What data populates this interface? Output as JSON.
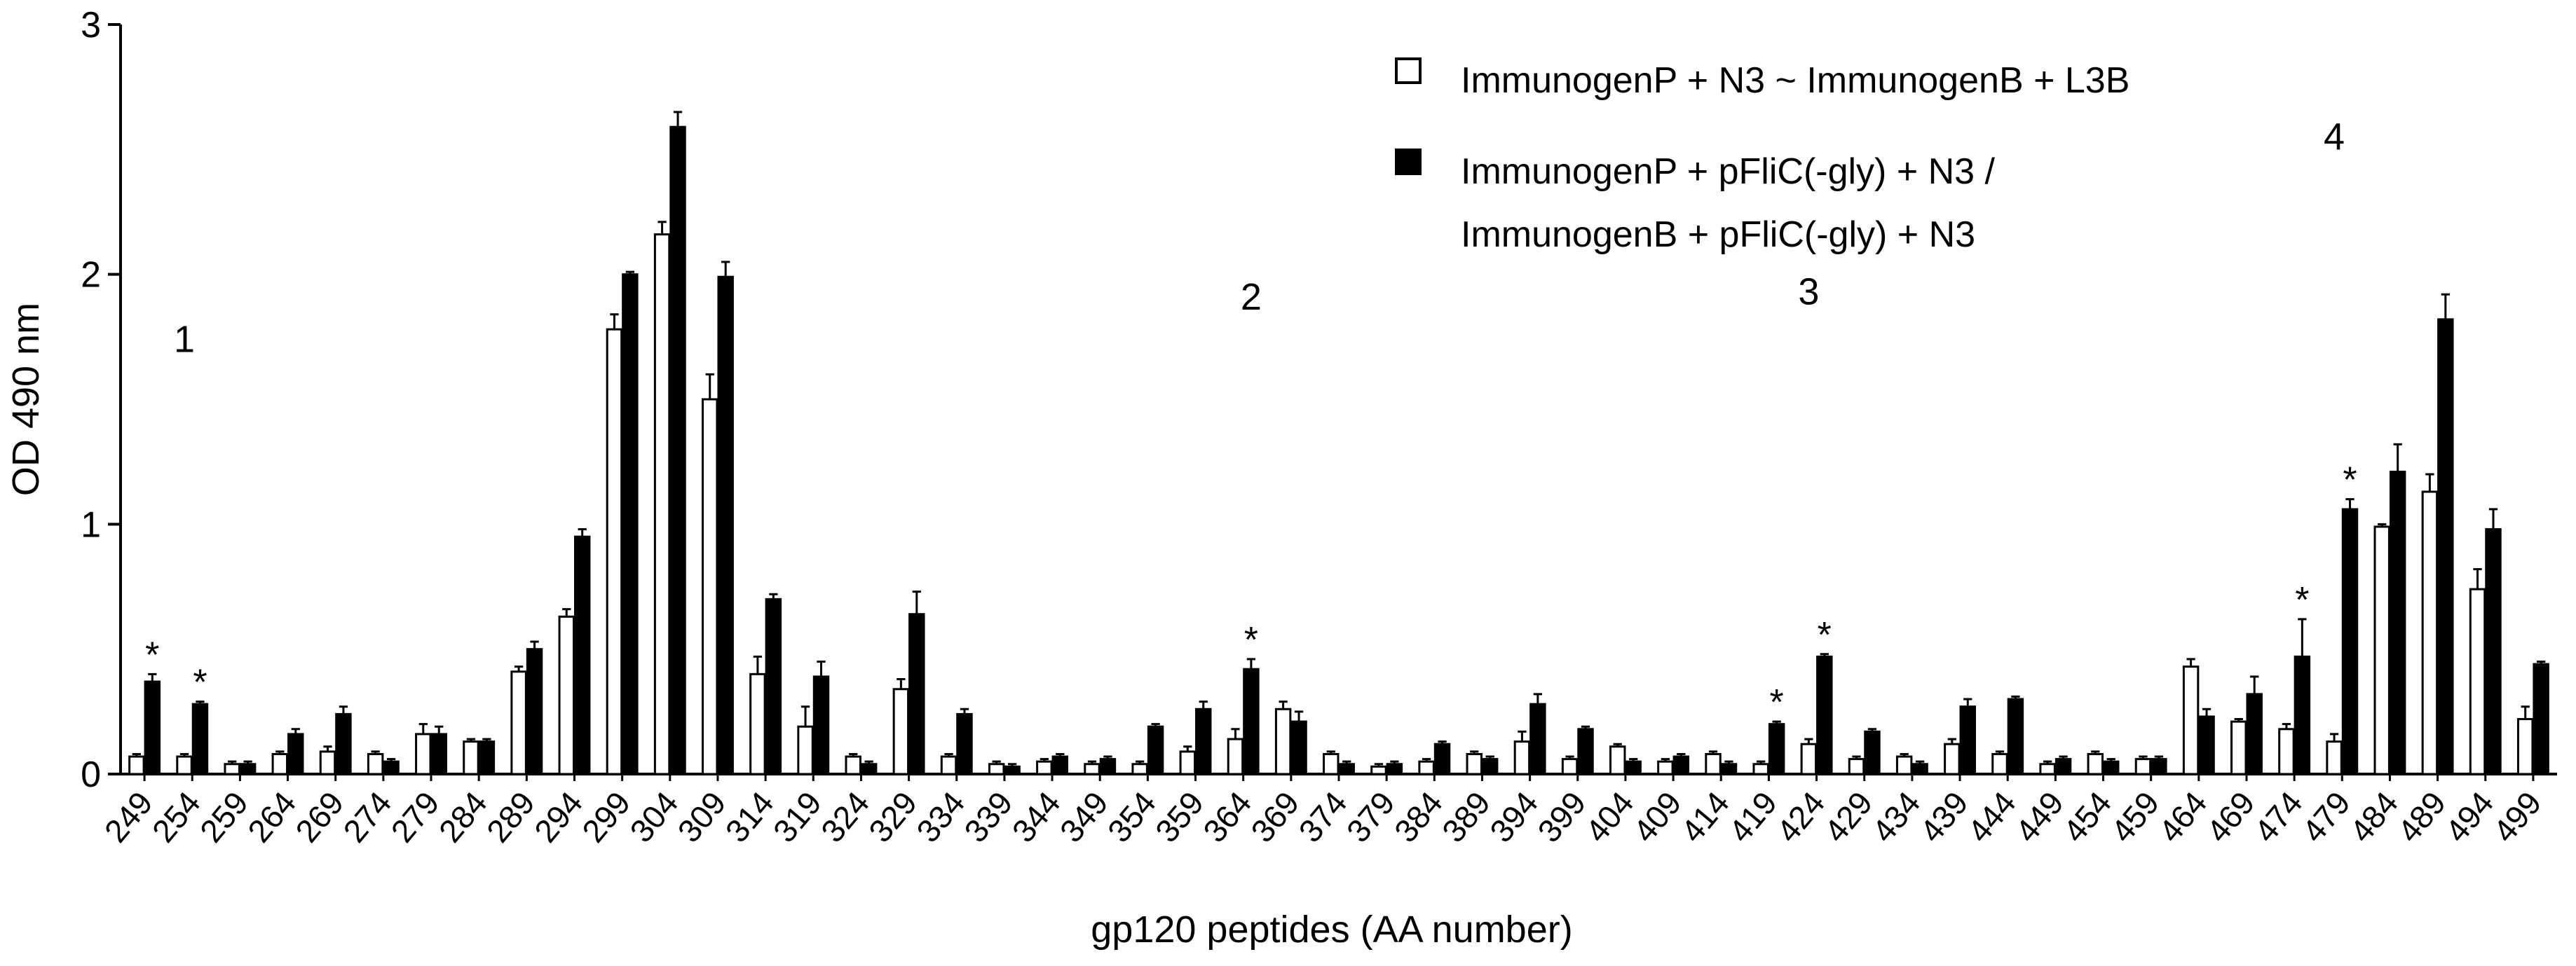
{
  "chart_data": {
    "type": "bar",
    "x_label": "gp120 peptides (AA number)",
    "y_label": "OD 490 nm",
    "categories": [
      "249",
      "254",
      "259",
      "264",
      "269",
      "274",
      "279",
      "284",
      "289",
      "294",
      "299",
      "304",
      "309",
      "314",
      "319",
      "324",
      "329",
      "334",
      "339",
      "344",
      "349",
      "354",
      "359",
      "364",
      "369",
      "374",
      "379",
      "384",
      "389",
      "394",
      "399",
      "404",
      "409",
      "414",
      "419",
      "424",
      "429",
      "434",
      "439",
      "444",
      "449",
      "454",
      "459",
      "464",
      "469",
      "474",
      "479",
      "484",
      "489",
      "494",
      "499"
    ],
    "series": [
      {
        "name": "ImmunogenP + N3 ~ ImmunogenB + L3B",
        "color": "#ffffff",
        "values": [
          0.07,
          0.07,
          0.04,
          0.08,
          0.09,
          0.08,
          0.16,
          0.13,
          0.41,
          0.63,
          1.78,
          2.16,
          1.5,
          0.4,
          0.19,
          0.07,
          0.34,
          0.07,
          0.04,
          0.05,
          0.04,
          0.04,
          0.09,
          0.14,
          0.26,
          0.08,
          0.03,
          0.05,
          0.08,
          0.13,
          0.06,
          0.11,
          0.05,
          0.08,
          0.04,
          0.12,
          0.06,
          0.07,
          0.12,
          0.08,
          0.04,
          0.08,
          0.06,
          0.43,
          0.21,
          0.18,
          0.13,
          0.99,
          1.13,
          0.74,
          0.22
        ],
        "errors": [
          0.01,
          0.01,
          0.01,
          0.01,
          0.02,
          0.01,
          0.04,
          0.01,
          0.02,
          0.03,
          0.06,
          0.05,
          0.1,
          0.07,
          0.08,
          0.01,
          0.04,
          0.01,
          0.01,
          0.01,
          0.01,
          0.01,
          0.02,
          0.04,
          0.03,
          0.01,
          0.01,
          0.01,
          0.01,
          0.04,
          0.01,
          0.01,
          0.01,
          0.01,
          0.01,
          0.02,
          0.01,
          0.01,
          0.02,
          0.01,
          0.01,
          0.01,
          0.01,
          0.03,
          0.01,
          0.02,
          0.03,
          0.01,
          0.07,
          0.08,
          0.05
        ]
      },
      {
        "name": "ImmunogenP + pFliC(-gly) + N3 / ImmunogenB + pFliC(-gly) + N3",
        "color": "#000000",
        "values": [
          0.37,
          0.28,
          0.04,
          0.16,
          0.24,
          0.05,
          0.16,
          0.13,
          0.5,
          0.95,
          2.0,
          2.59,
          1.99,
          0.7,
          0.39,
          0.04,
          0.64,
          0.24,
          0.03,
          0.07,
          0.06,
          0.19,
          0.26,
          0.42,
          0.21,
          0.04,
          0.04,
          0.12,
          0.06,
          0.28,
          0.18,
          0.05,
          0.07,
          0.04,
          0.2,
          0.47,
          0.17,
          0.04,
          0.27,
          0.3,
          0.06,
          0.05,
          0.06,
          0.23,
          0.32,
          0.47,
          1.06,
          1.21,
          1.82,
          0.98,
          0.44
        ],
        "errors": [
          0.03,
          0.01,
          0.01,
          0.02,
          0.03,
          0.01,
          0.03,
          0.01,
          0.03,
          0.03,
          0.01,
          0.06,
          0.06,
          0.02,
          0.06,
          0.01,
          0.09,
          0.02,
          0.01,
          0.01,
          0.01,
          0.01,
          0.03,
          0.04,
          0.04,
          0.01,
          0.01,
          0.01,
          0.01,
          0.04,
          0.01,
          0.01,
          0.01,
          0.01,
          0.01,
          0.01,
          0.01,
          0.01,
          0.03,
          0.01,
          0.01,
          0.01,
          0.01,
          0.03,
          0.07,
          0.15,
          0.04,
          0.11,
          0.1,
          0.08,
          0.01
        ]
      }
    ],
    "ylim": [
      0,
      3
    ],
    "yticks": [
      0,
      1,
      2,
      3
    ],
    "legend": "upper right",
    "annotations": [
      {
        "text": "*",
        "category": "249",
        "series": 1
      },
      {
        "text": "*",
        "category": "254",
        "series": 1
      },
      {
        "text": "*",
        "category": "364",
        "series": 1
      },
      {
        "text": "*",
        "category": "419",
        "series": 1
      },
      {
        "text": "*",
        "category": "424",
        "series": 1
      },
      {
        "text": "*",
        "category": "474",
        "series": 1
      },
      {
        "text": "*",
        "category": "479",
        "series": 1
      },
      {
        "text": "1",
        "category": "254",
        "series": 0
      },
      {
        "text": "2",
        "category": "364",
        "series": 1
      },
      {
        "text": "3",
        "category": "424",
        "series": 0
      },
      {
        "text": "4",
        "category": "479",
        "series": 0
      }
    ]
  }
}
